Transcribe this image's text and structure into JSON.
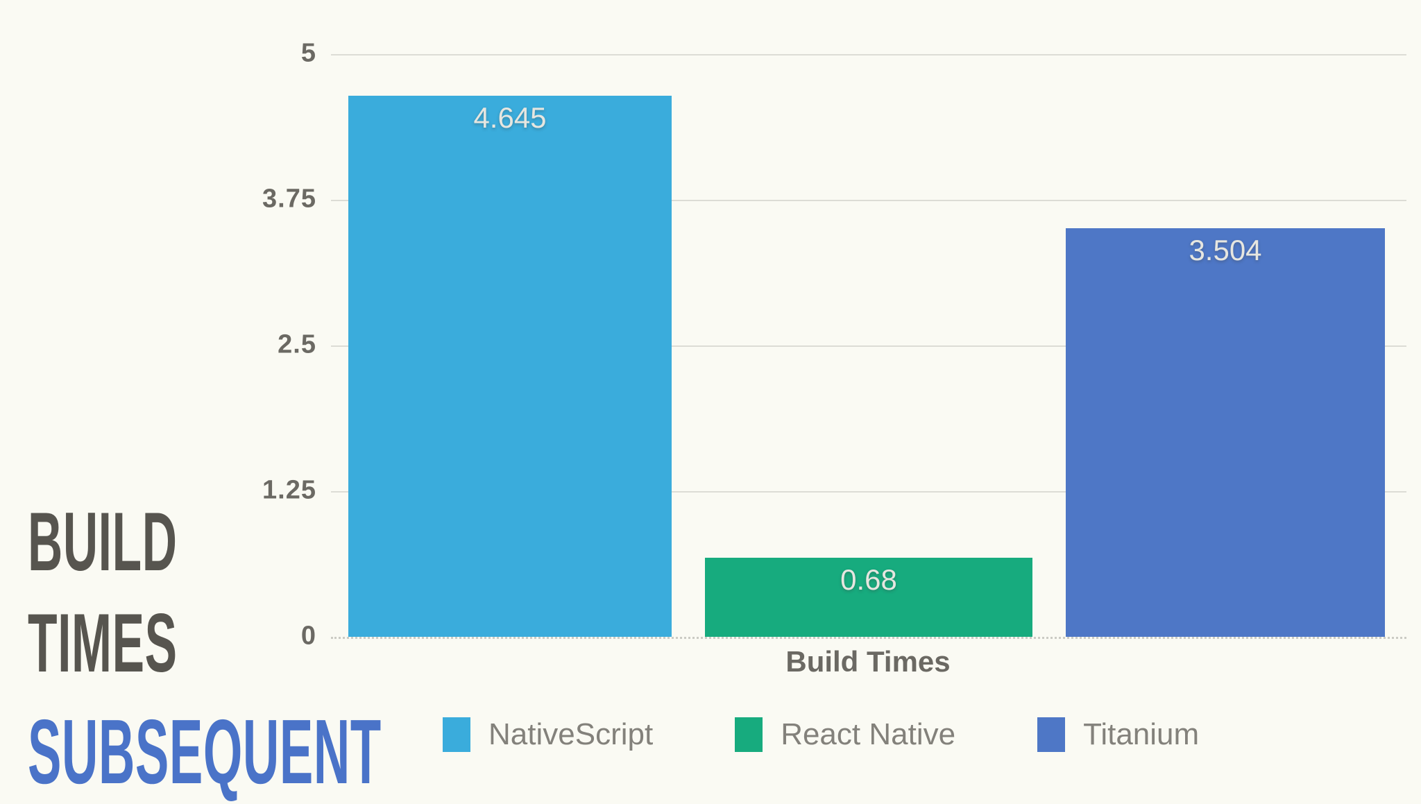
{
  "title": {
    "line1": "BUILD",
    "line2": "TIMES",
    "line3": "SUBSEQUENT"
  },
  "colors": {
    "background": "#FAFAF3",
    "title_gray": "#57554F",
    "title_accent_blue": "#4A73C8",
    "gridline": "#DCDCD5",
    "axis_text": "#6B6963",
    "legend_text": "#83817B",
    "bar_value_text": "#E6E6E0",
    "nativescript_cyan": "#3AACDC",
    "react_native_green": "#17AB7E",
    "titanium_blue": "#4E77C6"
  },
  "chart_data": {
    "type": "bar",
    "categories": [
      "NativeScript",
      "React Native",
      "Titanium"
    ],
    "values": [
      4.645,
      0.68,
      3.504
    ],
    "value_labels": [
      "4.645",
      "0.68",
      "3.504"
    ],
    "series_colors": [
      "#3AACDC",
      "#17AB7E",
      "#4E77C6"
    ],
    "title": "BUILD TIMES SUBSEQUENT",
    "xlabel": "Build Times",
    "ylabel": "",
    "ylim": [
      0,
      5
    ],
    "ytick_labels": [
      "5",
      "3.75",
      "2.5",
      "1.25",
      "0"
    ],
    "ytick_values": [
      5,
      3.75,
      2.5,
      1.25,
      0
    ],
    "grid": true,
    "legend_position": "bottom"
  },
  "legend": {
    "items": [
      {
        "label": "NativeScript",
        "color": "#3AACDC"
      },
      {
        "label": "React Native",
        "color": "#17AB7E"
      },
      {
        "label": "Titanium",
        "color": "#4E77C6"
      }
    ]
  }
}
